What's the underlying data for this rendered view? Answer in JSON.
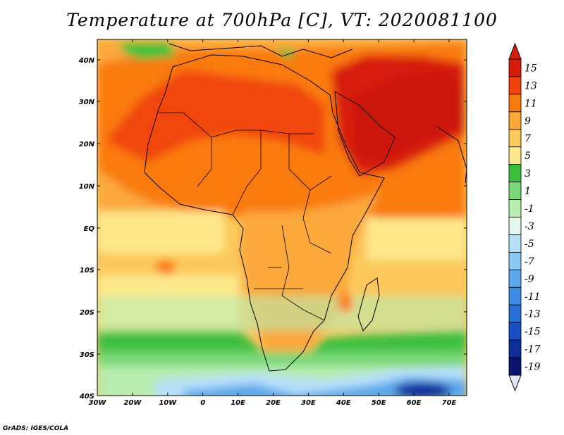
{
  "title": "Temperature at 700hPa [C], VT: 2020081100",
  "credit": "GrADS: IGES/COLA",
  "map": {
    "lon_labels": [
      "30W",
      "20W",
      "10W",
      "0",
      "10E",
      "20E",
      "30E",
      "40E",
      "50E",
      "60E",
      "70E"
    ],
    "lat_labels": [
      "40N",
      "30N",
      "20N",
      "10N",
      "EQ",
      "10S",
      "20S",
      "30S",
      "40S"
    ],
    "extent": {
      "lon": [
        -30,
        75
      ],
      "lat": [
        -40,
        45
      ]
    }
  },
  "colorbar": {
    "labels": [
      "15",
      "13",
      "11",
      "9",
      "7",
      "5",
      "3",
      "1",
      "-1",
      "-3",
      "-5",
      "-7",
      "-9",
      "-11",
      "-13",
      "-15",
      "-17",
      "-19"
    ],
    "colors": [
      "#d81c0c",
      "#f0440a",
      "#fa7a0c",
      "#fba83a",
      "#fcc85c",
      "#fde88c",
      "#3cc03c",
      "#78d878",
      "#b8ecb0",
      "#e6f8f0",
      "#b8e0fa",
      "#8ac8f6",
      "#5ca8ee",
      "#3c8ce4",
      "#2a6ed8",
      "#1a4ec4",
      "#0e2e9a",
      "#08136e"
    ]
  },
  "fields": {
    "land_color": "#fba83a",
    "hot_color": "#e04a10",
    "very_hot_color": "#d81c0c",
    "ocean_warm": "#fcc85c",
    "southern_cold": "#3cc03c"
  }
}
